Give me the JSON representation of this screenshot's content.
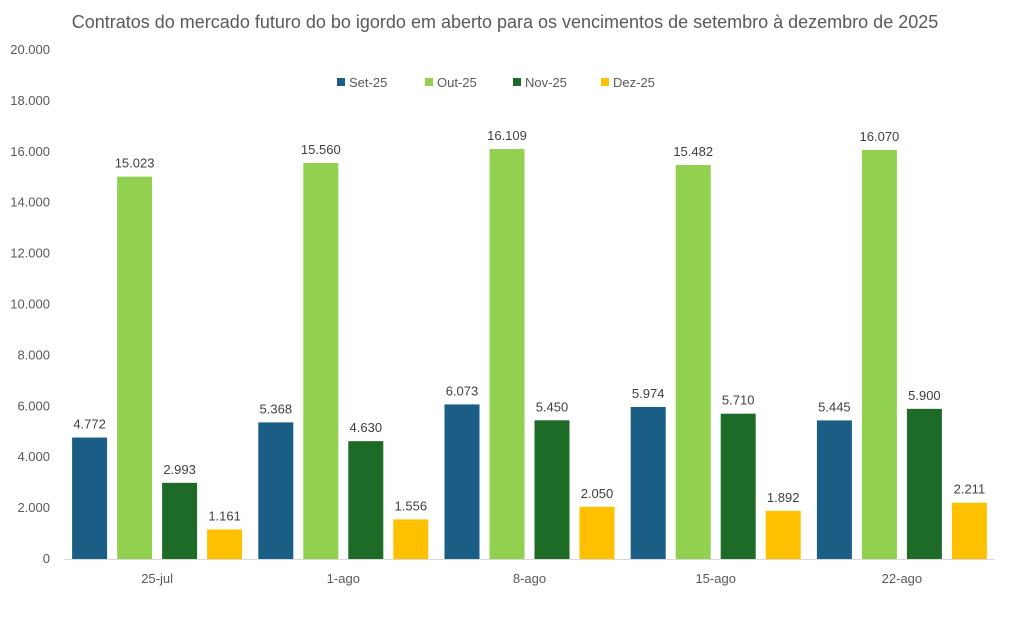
{
  "chart_data": {
    "type": "bar",
    "title": "Contratos do mercado futuro do bo igordo em aberto para os vencimentos de setembro à dezembro de 2025",
    "xlabel": "",
    "ylabel": "",
    "ylim": [
      0,
      20000
    ],
    "yticks": [
      0,
      2000,
      4000,
      6000,
      8000,
      10000,
      12000,
      14000,
      16000,
      18000,
      20000
    ],
    "ytick_labels": [
      "0",
      "2.000",
      "4.000",
      "6.000",
      "8.000",
      "10.000",
      "12.000",
      "14.000",
      "16.000",
      "18.000",
      "20.000"
    ],
    "grid": false,
    "legend_position": "top-center",
    "categories": [
      "25-jul",
      "1-ago",
      "8-ago",
      "15-ago",
      "22-ago"
    ],
    "series": [
      {
        "name": "Set-25",
        "color": "#1b5e85",
        "values": [
          4772,
          5368,
          6073,
          5974,
          5445
        ],
        "labels": [
          "4.772",
          "5.368",
          "6.073",
          "5.974",
          "5.445"
        ]
      },
      {
        "name": "Out-25",
        "color": "#92d050",
        "values": [
          15023,
          15560,
          16109,
          15482,
          16070
        ],
        "labels": [
          "15.023",
          "15.560",
          "16.109",
          "15.482",
          "16.070"
        ]
      },
      {
        "name": "Nov-25",
        "color": "#1e6b28",
        "values": [
          2993,
          4630,
          5450,
          5710,
          5900
        ],
        "labels": [
          "2.993",
          "4.630",
          "5.450",
          "5.710",
          "5.900"
        ]
      },
      {
        "name": "Dez-25",
        "color": "#ffc000",
        "values": [
          1161,
          1556,
          2050,
          1892,
          2211
        ],
        "labels": [
          "1.161",
          "1.556",
          "2.050",
          "1.892",
          "2.211"
        ]
      }
    ]
  }
}
